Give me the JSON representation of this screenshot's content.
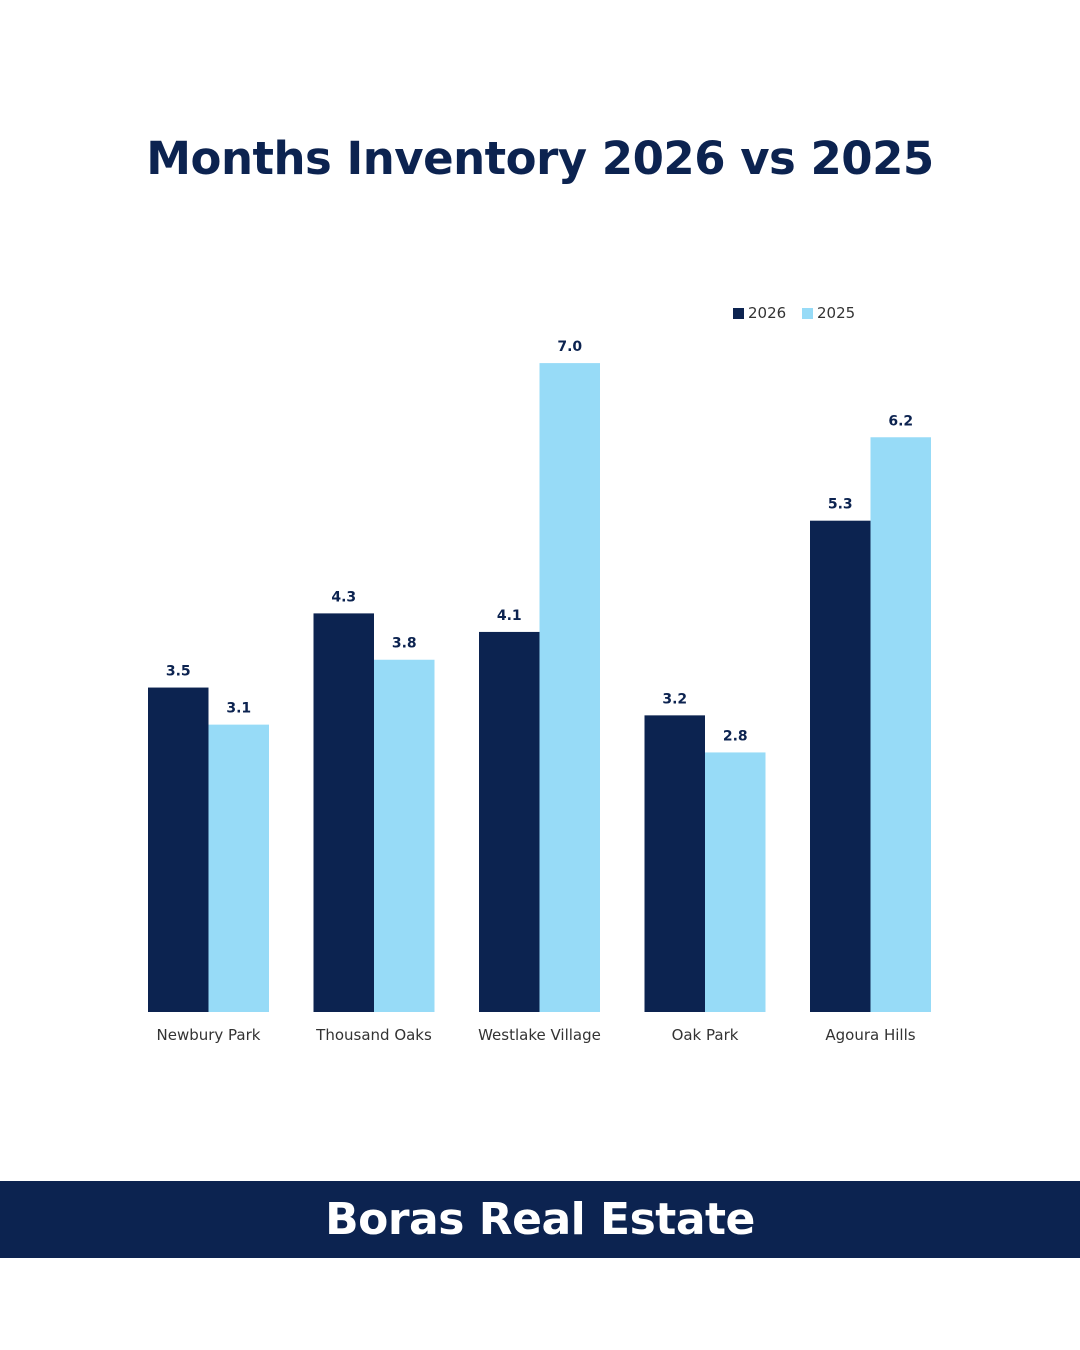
{
  "chart_data": {
    "type": "bar",
    "title": "Months Inventory 2026 vs 2025",
    "categories": [
      "Newbury Park",
      "Thousand Oaks",
      "Westlake Village",
      "Oak Park",
      "Agoura Hills"
    ],
    "series": [
      {
        "name": "2026",
        "color": "#0c2350",
        "values": [
          3.5,
          4.3,
          4.1,
          3.2,
          5.3
        ],
        "labels": [
          "3.5",
          "4.3",
          "4.1",
          "3.2",
          "5.3"
        ]
      },
      {
        "name": "2025",
        "color": "#97dbf7",
        "values": [
          3.1,
          3.8,
          7.0,
          2.8,
          6.2
        ],
        "labels": [
          "3.1",
          "3.8",
          "7.0",
          "2.8",
          "6.2"
        ]
      }
    ],
    "ylim": [
      0,
      7.2
    ],
    "grid": false,
    "legend": "top-right",
    "xlabel": "",
    "ylabel": ""
  },
  "footer": {
    "brand": "Boras Real Estate"
  }
}
